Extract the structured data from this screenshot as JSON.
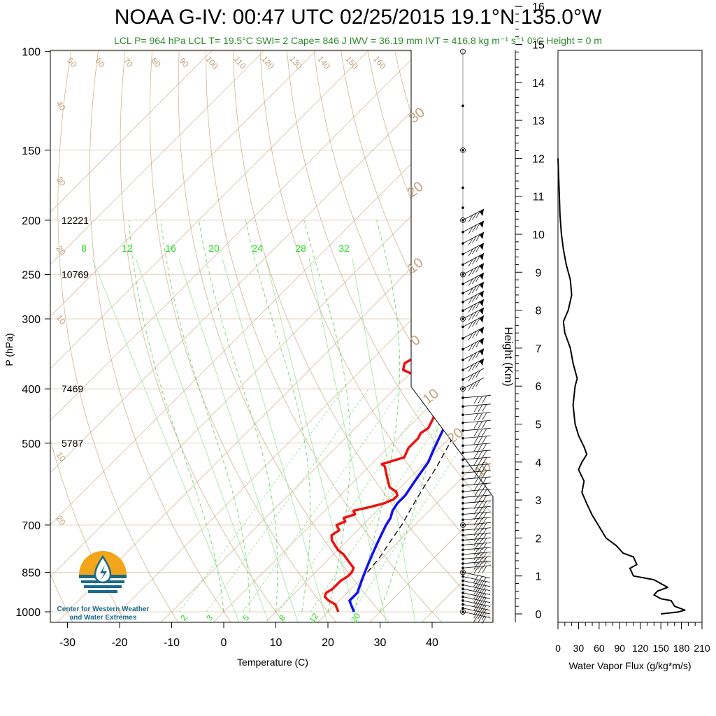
{
  "title": "NOAA G-IV: 00:47 UTC 02/25/2015  19.1°N 135.0°W",
  "subtitle": "LCL P= 964 hPa  LCL T= 19.5°C  SWI= 2  Cape= 846 J  IWV = 36.19 mm  IVT = 416.8 kg m⁻¹ s⁻¹  0°C Height = 0 m",
  "logo_caption_line1": "Center for Western Weather",
  "logo_caption_line2": "and Water Extremes",
  "colors": {
    "temperature": "#ee1111",
    "dewpoint": "#1111ee",
    "dry_adiabat": "#c4a27a",
    "mixing_ratio": "#33dd33",
    "subtitle": "#2e8b2e"
  },
  "chart_data": [
    {
      "type": "line",
      "name": "skew-t",
      "xlabel": "Temperature (C)",
      "ylabel": "P (hPa)",
      "x_ticks": [
        -30,
        -20,
        -10,
        0,
        10,
        20,
        30,
        40
      ],
      "y_ticks": [
        100,
        150,
        200,
        250,
        300,
        400,
        500,
        700,
        850,
        1000
      ],
      "y_scale": "log",
      "height_labels": [
        {
          "p": 200,
          "label": "12221"
        },
        {
          "p": 250,
          "label": "10769"
        },
        {
          "p": 400,
          "label": "7469"
        },
        {
          "p": 500,
          "label": "5787"
        }
      ],
      "mixing_ratio_top_labels": [
        "8",
        "12",
        "16",
        "20",
        "24",
        "28",
        "32"
      ],
      "mixing_ratio_bottom_labels": [
        "2",
        "3",
        "5",
        "8",
        "12",
        "20"
      ],
      "dry_adiabat_labels": [
        "50",
        "60",
        "70",
        "80",
        "90",
        "100",
        "110",
        "120",
        "130",
        "140",
        "150",
        "160"
      ],
      "left_labels": [
        "40",
        "30",
        "20",
        "10",
        "10",
        "20"
      ],
      "right_labels": [
        "30",
        "20",
        "10",
        "0",
        "10",
        "20",
        "10"
      ],
      "series": [
        {
          "name": "temperature",
          "points": [
            [
              1000,
              22
            ],
            [
              985,
              21
            ],
            [
              970,
              20
            ],
            [
              955,
              18
            ],
            [
              940,
              16.5
            ],
            [
              925,
              16
            ],
            [
              910,
              16.5
            ],
            [
              895,
              16.5
            ],
            [
              880,
              16.5
            ],
            [
              865,
              17
            ],
            [
              850,
              17
            ],
            [
              835,
              16.5
            ],
            [
              820,
              15
            ],
            [
              805,
              13.5
            ],
            [
              790,
              12
            ],
            [
              775,
              10
            ],
            [
              760,
              8.5
            ],
            [
              745,
              7
            ],
            [
              730,
              6
            ],
            [
              715,
              6.5
            ],
            [
              700,
              5
            ],
            [
              690,
              6
            ],
            [
              680,
              5
            ],
            [
              670,
              6.5
            ],
            [
              660,
              5.5
            ],
            [
              650,
              8
            ],
            [
              640,
              10
            ],
            [
              630,
              11
            ],
            [
              620,
              11
            ],
            [
              610,
              10
            ],
            [
              600,
              8
            ],
            [
              590,
              7
            ],
            [
              580,
              6
            ],
            [
              570,
              5
            ],
            [
              560,
              4
            ],
            [
              550,
              3
            ],
            [
              545,
              2
            ],
            [
              540,
              3
            ],
            [
              530,
              5
            ],
            [
              520,
              4.5
            ],
            [
              510,
              4
            ],
            [
              500,
              4
            ],
            [
              490,
              4
            ],
            [
              480,
              3.5
            ],
            [
              470,
              4
            ],
            [
              460,
              3.5
            ],
            [
              450,
              3
            ],
            [
              440,
              2
            ],
            [
              430,
              2.5
            ],
            [
              420,
              1.5
            ],
            [
              410,
              1
            ],
            [
              400,
              0
            ],
            [
              390,
              -3
            ],
            [
              380,
              -8
            ],
            [
              370,
              -12
            ],
            [
              360,
              -13
            ],
            [
              350,
              -12
            ],
            [
              340,
              -9
            ],
            [
              330,
              -7
            ],
            [
              320,
              -8
            ],
            [
              310,
              -9
            ],
            [
              300,
              -10
            ],
            [
              290,
              -11
            ],
            [
              280,
              -12.5
            ],
            [
              270,
              -14
            ],
            [
              260,
              -14.5
            ],
            [
              250,
              -15
            ],
            [
              245,
              -16
            ],
            [
              240,
              -17
            ],
            [
              230,
              -20
            ],
            [
              220,
              -22
            ],
            [
              210,
              -24
            ],
            [
              200,
              -27
            ],
            [
              195,
              -29
            ]
          ]
        },
        {
          "name": "dewpoint",
          "points": [
            [
              1000,
              25
            ],
            [
              985,
              24
            ],
            [
              970,
              23
            ],
            [
              955,
              22
            ],
            [
              940,
              22
            ],
            [
              925,
              22
            ],
            [
              910,
              21.5
            ],
            [
              895,
              21
            ],
            [
              880,
              20.5
            ],
            [
              865,
              20
            ],
            [
              850,
              19.5
            ],
            [
              820,
              18.5
            ],
            [
              790,
              17.5
            ],
            [
              760,
              16.5
            ],
            [
              730,
              15.5
            ],
            [
              700,
              14.5
            ],
            [
              680,
              14
            ],
            [
              660,
              13
            ],
            [
              640,
              12.5
            ],
            [
              620,
              12.5
            ],
            [
              600,
              12
            ],
            [
              580,
              11.5
            ],
            [
              560,
              11
            ],
            [
              540,
              10.5
            ],
            [
              520,
              9.5
            ],
            [
              500,
              8.5
            ],
            [
              480,
              7.5
            ],
            [
              460,
              6.5
            ],
            [
              440,
              5.5
            ],
            [
              420,
              4
            ],
            [
              400,
              2.5
            ],
            [
              380,
              0
            ],
            [
              360,
              -2
            ],
            [
              350,
              -4
            ],
            [
              340,
              -5.5
            ],
            [
              320,
              -7
            ],
            [
              300,
              -9
            ],
            [
              280,
              -11
            ],
            [
              260,
              -13
            ],
            [
              250,
              -14
            ],
            [
              240,
              -15.5
            ],
            [
              230,
              -17
            ],
            [
              220,
              -19.5
            ],
            [
              210,
              -21.5
            ],
            [
              200,
              -24
            ],
            [
              195,
              -25.5
            ]
          ]
        },
        {
          "name": "parcel",
          "points": [
            [
              850,
              20
            ],
            [
              800,
              19.5
            ],
            [
              750,
              18.5
            ],
            [
              700,
              17.5
            ],
            [
              650,
              16
            ],
            [
              600,
              14.5
            ],
            [
              550,
              13
            ],
            [
              500,
              11
            ],
            [
              450,
              8.5
            ],
            [
              400,
              5.5
            ],
            [
              350,
              1.5
            ],
            [
              300,
              -3
            ],
            [
              270,
              -6.5
            ]
          ]
        }
      ],
      "wind_barb_pressures": [
        1000,
        985,
        970,
        955,
        940,
        925,
        910,
        895,
        880,
        865,
        850,
        835,
        820,
        805,
        790,
        775,
        760,
        745,
        730,
        715,
        700,
        685,
        670,
        655,
        640,
        625,
        610,
        595,
        580,
        565,
        550,
        535,
        520,
        505,
        490,
        475,
        460,
        445,
        430,
        415,
        400,
        385,
        370,
        355,
        340,
        325,
        310,
        300,
        290,
        280,
        270,
        260,
        250,
        240,
        230,
        220,
        210,
        200
      ]
    },
    {
      "type": "line",
      "name": "water-vapor-flux",
      "xlabel": "Water Vapor Flux (g/kg*m/s)",
      "ylabel": "Height (Km)",
      "x_ticks": [
        0,
        30,
        60,
        90,
        120,
        150,
        180,
        210
      ],
      "y_ticks": [
        0,
        1,
        2,
        3,
        4,
        5,
        6,
        7,
        8,
        9,
        10,
        11,
        12,
        13,
        14,
        15,
        16
      ],
      "xlim": [
        0,
        210
      ],
      "ylim": [
        0,
        16
      ],
      "series": [
        {
          "name": "flux",
          "points": [
            [
              150,
              0
            ],
            [
              175,
              0.05
            ],
            [
              185,
              0.1
            ],
            [
              170,
              0.2
            ],
            [
              165,
              0.35
            ],
            [
              150,
              0.4
            ],
            [
              140,
              0.5
            ],
            [
              145,
              0.6
            ],
            [
              160,
              0.7
            ],
            [
              150,
              0.8
            ],
            [
              140,
              0.9
            ],
            [
              110,
              1.0
            ],
            [
              105,
              1.2
            ],
            [
              115,
              1.3
            ],
            [
              110,
              1.5
            ],
            [
              95,
              1.6
            ],
            [
              85,
              1.8
            ],
            [
              70,
              2.0
            ],
            [
              60,
              2.3
            ],
            [
              50,
              2.6
            ],
            [
              42,
              2.9
            ],
            [
              35,
              3.2
            ],
            [
              38,
              3.5
            ],
            [
              30,
              3.8
            ],
            [
              35,
              4.0
            ],
            [
              42,
              4.2
            ],
            [
              38,
              4.4
            ],
            [
              30,
              4.7
            ],
            [
              25,
              5.0
            ],
            [
              22,
              5.5
            ],
            [
              25,
              6.0
            ],
            [
              28,
              6.2
            ],
            [
              22,
              6.6
            ],
            [
              18,
              7.0
            ],
            [
              10,
              7.4
            ],
            [
              8,
              7.7
            ],
            [
              15,
              8.0
            ],
            [
              20,
              8.4
            ],
            [
              18,
              8.8
            ],
            [
              12,
              9.2
            ],
            [
              8,
              9.6
            ],
            [
              5,
              10.0
            ],
            [
              3,
              10.5
            ],
            [
              2,
              11.0
            ],
            [
              1,
              11.5
            ],
            [
              0,
              12.0
            ]
          ]
        }
      ]
    }
  ]
}
